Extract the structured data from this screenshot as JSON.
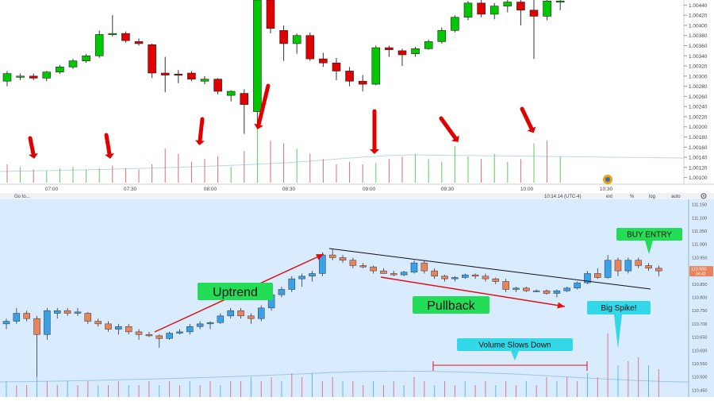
{
  "chart_data": [
    {
      "type": "candlestick",
      "panel": "top",
      "x_ticks": [
        "07:00",
        "07:30",
        "08:00",
        "08:30",
        "09:00",
        "09:30",
        "10:00",
        "10:30"
      ],
      "y_ticks": [
        "1.00100",
        "1.00120",
        "1.00140",
        "1.00160",
        "1.00180",
        "1.00200",
        "1.00220",
        "1.00240",
        "1.00260",
        "1.00280",
        "1.00300",
        "1.00320",
        "1.00340",
        "1.00360",
        "1.00380",
        "1.00400",
        "1.00420",
        "1.00440"
      ],
      "ylim": [
        1.0009,
        1.0045
      ],
      "colors": {
        "up": "#00c800",
        "down": "#e00000",
        "arrow": "#e00000"
      },
      "candles": [
        {
          "o": 1.0029,
          "h": 1.0031,
          "l": 1.0028,
          "c": 1.00305
        },
        {
          "o": 1.003,
          "h": 1.00305,
          "l": 1.00292,
          "c": 1.003
        },
        {
          "o": 1.003,
          "h": 1.00305,
          "l": 1.00292,
          "c": 1.00296
        },
        {
          "o": 1.00296,
          "h": 1.0031,
          "l": 1.0029,
          "c": 1.00308
        },
        {
          "o": 1.00308,
          "h": 1.00322,
          "l": 1.00304,
          "c": 1.00318
        },
        {
          "o": 1.00318,
          "h": 1.00334,
          "l": 1.00314,
          "c": 1.0033
        },
        {
          "o": 1.0033,
          "h": 1.00344,
          "l": 1.00326,
          "c": 1.0034
        },
        {
          "o": 1.0034,
          "h": 1.0039,
          "l": 1.00336,
          "c": 1.00382
        },
        {
          "o": 1.00382,
          "h": 1.0042,
          "l": 1.00378,
          "c": 1.00384
        },
        {
          "o": 1.00384,
          "h": 1.00388,
          "l": 1.00366,
          "c": 1.0037
        },
        {
          "o": 1.00368,
          "h": 1.00374,
          "l": 1.0036,
          "c": 1.00364
        },
        {
          "o": 1.00362,
          "h": 1.00364,
          "l": 1.00296,
          "c": 1.00306
        },
        {
          "o": 1.00306,
          "h": 1.00338,
          "l": 1.00268,
          "c": 1.00302
        },
        {
          "o": 1.00304,
          "h": 1.00312,
          "l": 1.00286,
          "c": 1.00302
        },
        {
          "o": 1.00306,
          "h": 1.0031,
          "l": 1.0029,
          "c": 1.00294
        },
        {
          "o": 1.0029,
          "h": 1.003,
          "l": 1.00284,
          "c": 1.00294
        },
        {
          "o": 1.00294,
          "h": 1.00296,
          "l": 1.00264,
          "c": 1.0027
        },
        {
          "o": 1.00262,
          "h": 1.00272,
          "l": 1.0025,
          "c": 1.0027
        },
        {
          "o": 1.00266,
          "h": 1.00274,
          "l": 1.00186,
          "c": 1.00244
        },
        {
          "o": 1.0023,
          "h": 1.00452,
          "l": 1.002,
          "c": 1.0045
        },
        {
          "o": 1.0045,
          "h": 1.00456,
          "l": 1.00384,
          "c": 1.00394
        },
        {
          "o": 1.0039,
          "h": 1.004,
          "l": 1.0033,
          "c": 1.00364
        },
        {
          "o": 1.00364,
          "h": 1.00384,
          "l": 1.00344,
          "c": 1.0038
        },
        {
          "o": 1.0038,
          "h": 1.00386,
          "l": 1.0033,
          "c": 1.00334
        },
        {
          "o": 1.00334,
          "h": 1.00346,
          "l": 1.00318,
          "c": 1.00326
        },
        {
          "o": 1.00326,
          "h": 1.00336,
          "l": 1.00292,
          "c": 1.0031
        },
        {
          "o": 1.0031,
          "h": 1.00318,
          "l": 1.0028,
          "c": 1.0029
        },
        {
          "o": 1.0029,
          "h": 1.00302,
          "l": 1.0027,
          "c": 1.00284
        },
        {
          "o": 1.00284,
          "h": 1.0036,
          "l": 1.00282,
          "c": 1.00356
        },
        {
          "o": 1.00356,
          "h": 1.0036,
          "l": 1.00338,
          "c": 1.00352
        },
        {
          "o": 1.0035,
          "h": 1.00354,
          "l": 1.0032,
          "c": 1.00342
        },
        {
          "o": 1.00344,
          "h": 1.00358,
          "l": 1.00338,
          "c": 1.00354
        },
        {
          "o": 1.00354,
          "h": 1.00372,
          "l": 1.00352,
          "c": 1.00368
        },
        {
          "o": 1.00368,
          "h": 1.00396,
          "l": 1.00364,
          "c": 1.0039
        },
        {
          "o": 1.0039,
          "h": 1.0042,
          "l": 1.00386,
          "c": 1.00416
        },
        {
          "o": 1.00416,
          "h": 1.00448,
          "l": 1.0041,
          "c": 1.00444
        },
        {
          "o": 1.00444,
          "h": 1.0045,
          "l": 1.00416,
          "c": 1.00422
        },
        {
          "o": 1.00422,
          "h": 1.00444,
          "l": 1.00412,
          "c": 1.00438
        },
        {
          "o": 1.00438,
          "h": 1.0045,
          "l": 1.00426,
          "c": 1.00446
        },
        {
          "o": 1.00446,
          "h": 1.00456,
          "l": 1.004,
          "c": 1.0043
        },
        {
          "o": 1.0043,
          "h": 1.0045,
          "l": 1.00334,
          "c": 1.00418
        },
        {
          "o": 1.00418,
          "h": 1.00452,
          "l": 1.0041,
          "c": 1.00448
        },
        {
          "o": 1.00448,
          "h": 1.00452,
          "l": 1.0043,
          "c": 1.00448
        }
      ],
      "volumes": [
        14,
        12,
        10,
        9,
        11,
        12,
        10,
        11,
        13,
        11,
        10,
        14,
        26,
        22,
        16,
        18,
        20,
        12,
        24,
        44,
        32,
        30,
        26,
        22,
        18,
        14,
        16,
        14,
        15,
        18,
        20,
        22,
        18,
        16,
        28,
        20,
        18,
        22,
        16,
        18,
        30,
        32,
        20
      ],
      "volume_colors": [
        "r",
        "g",
        "r",
        "g",
        "g",
        "g",
        "g",
        "g",
        "r",
        "r",
        "r",
        "r",
        "r",
        "r",
        "r",
        "r",
        "r",
        "g",
        "r",
        "g",
        "r",
        "r",
        "g",
        "r",
        "r",
        "r",
        "r",
        "r",
        "g",
        "r",
        "r",
        "g",
        "g",
        "g",
        "g",
        "g",
        "r",
        "g",
        "g",
        "r",
        "g",
        "r",
        "g"
      ]
    },
    {
      "type": "candlestick",
      "panel": "bottom",
      "toolbar": {
        "symbol": "Go to...",
        "time": "10:14:14 (UTC-4)",
        "ext": "ext",
        "percent": "%",
        "log": "log",
        "auto": "auto"
      },
      "y_ticks": [
        "110.450",
        "110.500",
        "110.550",
        "110.600",
        "110.650",
        "110.700",
        "110.750",
        "110.800",
        "110.850",
        "110.900",
        "110.950",
        "111.000",
        "111.050",
        "111.100",
        "111.150"
      ],
      "ylim": [
        110.43,
        111.17
      ],
      "price_tag": {
        "value": "110.900",
        "sub": "04:42"
      },
      "colors": {
        "up": "#3aa0e8",
        "down": "#e8845a"
      },
      "candles": [
        {
          "o": 110.7,
          "h": 110.72,
          "l": 110.68,
          "c": 110.71
        },
        {
          "o": 110.71,
          "h": 110.76,
          "l": 110.7,
          "c": 110.74
        },
        {
          "o": 110.74,
          "h": 110.75,
          "l": 110.71,
          "c": 110.72
        },
        {
          "o": 110.72,
          "h": 110.73,
          "l": 110.5,
          "c": 110.66
        },
        {
          "o": 110.66,
          "h": 110.76,
          "l": 110.64,
          "c": 110.75
        },
        {
          "o": 110.74,
          "h": 110.76,
          "l": 110.72,
          "c": 110.75
        },
        {
          "o": 110.75,
          "h": 110.76,
          "l": 110.73,
          "c": 110.74
        },
        {
          "o": 110.74,
          "h": 110.76,
          "l": 110.73,
          "c": 110.745
        },
        {
          "o": 110.74,
          "h": 110.745,
          "l": 110.7,
          "c": 110.71
        },
        {
          "o": 110.71,
          "h": 110.72,
          "l": 110.69,
          "c": 110.7
        },
        {
          "o": 110.7,
          "h": 110.71,
          "l": 110.67,
          "c": 110.68
        },
        {
          "o": 110.68,
          "h": 110.7,
          "l": 110.66,
          "c": 110.69
        },
        {
          "o": 110.69,
          "h": 110.7,
          "l": 110.66,
          "c": 110.67
        },
        {
          "o": 110.67,
          "h": 110.68,
          "l": 110.64,
          "c": 110.66
        },
        {
          "o": 110.66,
          "h": 110.67,
          "l": 110.65,
          "c": 110.655
        },
        {
          "o": 110.655,
          "h": 110.66,
          "l": 110.61,
          "c": 110.645
        },
        {
          "o": 110.645,
          "h": 110.67,
          "l": 110.64,
          "c": 110.665
        },
        {
          "o": 110.665,
          "h": 110.68,
          "l": 110.66,
          "c": 110.67
        },
        {
          "o": 110.67,
          "h": 110.7,
          "l": 110.66,
          "c": 110.69
        },
        {
          "o": 110.69,
          "h": 110.71,
          "l": 110.68,
          "c": 110.7
        },
        {
          "o": 110.7,
          "h": 110.71,
          "l": 110.68,
          "c": 110.705
        },
        {
          "o": 110.705,
          "h": 110.74,
          "l": 110.7,
          "c": 110.73
        },
        {
          "o": 110.73,
          "h": 110.76,
          "l": 110.72,
          "c": 110.75
        },
        {
          "o": 110.75,
          "h": 110.76,
          "l": 110.72,
          "c": 110.73
        },
        {
          "o": 110.73,
          "h": 110.74,
          "l": 110.7,
          "c": 110.72
        },
        {
          "o": 110.72,
          "h": 110.77,
          "l": 110.71,
          "c": 110.76
        },
        {
          "o": 110.76,
          "h": 110.82,
          "l": 110.75,
          "c": 110.81
        },
        {
          "o": 110.81,
          "h": 110.84,
          "l": 110.8,
          "c": 110.83
        },
        {
          "o": 110.83,
          "h": 110.88,
          "l": 110.82,
          "c": 110.87
        },
        {
          "o": 110.87,
          "h": 110.89,
          "l": 110.84,
          "c": 110.88
        },
        {
          "o": 110.88,
          "h": 110.9,
          "l": 110.86,
          "c": 110.89
        },
        {
          "o": 110.89,
          "h": 110.97,
          "l": 110.88,
          "c": 110.96
        },
        {
          "o": 110.96,
          "h": 110.98,
          "l": 110.94,
          "c": 110.95
        },
        {
          "o": 110.95,
          "h": 110.96,
          "l": 110.93,
          "c": 110.94
        },
        {
          "o": 110.94,
          "h": 110.95,
          "l": 110.91,
          "c": 110.92
        },
        {
          "o": 110.92,
          "h": 110.93,
          "l": 110.91,
          "c": 110.915
        },
        {
          "o": 110.915,
          "h": 110.92,
          "l": 110.89,
          "c": 110.9
        },
        {
          "o": 110.9,
          "h": 110.91,
          "l": 110.89,
          "c": 110.89
        },
        {
          "o": 110.89,
          "h": 110.9,
          "l": 110.88,
          "c": 110.885
        },
        {
          "o": 110.885,
          "h": 110.9,
          "l": 110.88,
          "c": 110.895
        },
        {
          "o": 110.895,
          "h": 110.94,
          "l": 110.89,
          "c": 110.93
        },
        {
          "o": 110.93,
          "h": 110.94,
          "l": 110.89,
          "c": 110.9
        },
        {
          "o": 110.9,
          "h": 110.91,
          "l": 110.87,
          "c": 110.88
        },
        {
          "o": 110.88,
          "h": 110.885,
          "l": 110.86,
          "c": 110.87
        },
        {
          "o": 110.87,
          "h": 110.88,
          "l": 110.86,
          "c": 110.875
        },
        {
          "o": 110.875,
          "h": 110.89,
          "l": 110.87,
          "c": 110.885
        },
        {
          "o": 110.885,
          "h": 110.89,
          "l": 110.87,
          "c": 110.88
        },
        {
          "o": 110.88,
          "h": 110.89,
          "l": 110.86,
          "c": 110.87
        },
        {
          "o": 110.87,
          "h": 110.875,
          "l": 110.85,
          "c": 110.86
        },
        {
          "o": 110.86,
          "h": 110.87,
          "l": 110.82,
          "c": 110.83
        },
        {
          "o": 110.83,
          "h": 110.84,
          "l": 110.82,
          "c": 110.835
        },
        {
          "o": 110.835,
          "h": 110.84,
          "l": 110.82,
          "c": 110.825
        },
        {
          "o": 110.825,
          "h": 110.83,
          "l": 110.82,
          "c": 110.825
        },
        {
          "o": 110.825,
          "h": 110.83,
          "l": 110.81,
          "c": 110.815
        },
        {
          "o": 110.815,
          "h": 110.83,
          "l": 110.8,
          "c": 110.825
        },
        {
          "o": 110.825,
          "h": 110.84,
          "l": 110.82,
          "c": 110.835
        },
        {
          "o": 110.835,
          "h": 110.86,
          "l": 110.83,
          "c": 110.855
        },
        {
          "o": 110.855,
          "h": 110.9,
          "l": 110.85,
          "c": 110.89
        },
        {
          "o": 110.89,
          "h": 110.91,
          "l": 110.87,
          "c": 110.875
        },
        {
          "o": 110.875,
          "h": 110.96,
          "l": 110.87,
          "c": 110.94
        },
        {
          "o": 110.94,
          "h": 110.95,
          "l": 110.88,
          "c": 110.9
        },
        {
          "o": 110.9,
          "h": 110.95,
          "l": 110.89,
          "c": 110.94
        },
        {
          "o": 110.94,
          "h": 110.95,
          "l": 110.91,
          "c": 110.92
        },
        {
          "o": 110.92,
          "h": 110.93,
          "l": 110.9,
          "c": 110.91
        },
        {
          "o": 110.91,
          "h": 110.92,
          "l": 110.88,
          "c": 110.9
        }
      ],
      "volume_seed": [
        4,
        3,
        3,
        5,
        4,
        3,
        4,
        3,
        4,
        3,
        3,
        4,
        3,
        3,
        4,
        3,
        4,
        3,
        4,
        3,
        4,
        3,
        4,
        4,
        5,
        4,
        5,
        4,
        6,
        5,
        6,
        4,
        5,
        4,
        4,
        3,
        4,
        3,
        4,
        3,
        5,
        4,
        3,
        4,
        3,
        4,
        3,
        4,
        3,
        4,
        3,
        4,
        3,
        5,
        4,
        5,
        4,
        6,
        5,
        16,
        8,
        9,
        10,
        8,
        7
      ],
      "annotations": {
        "uptrend": "Uptrend",
        "pullback": "Pullback",
        "buy_entry": "BUY ENTRY",
        "big_spike": "Big Spike!",
        "volume_slows": "Volume Slows Down"
      },
      "annotation_colors": {
        "green": "#22dd55",
        "cyan": "#33d8e8",
        "red": "#e01010"
      }
    }
  ]
}
